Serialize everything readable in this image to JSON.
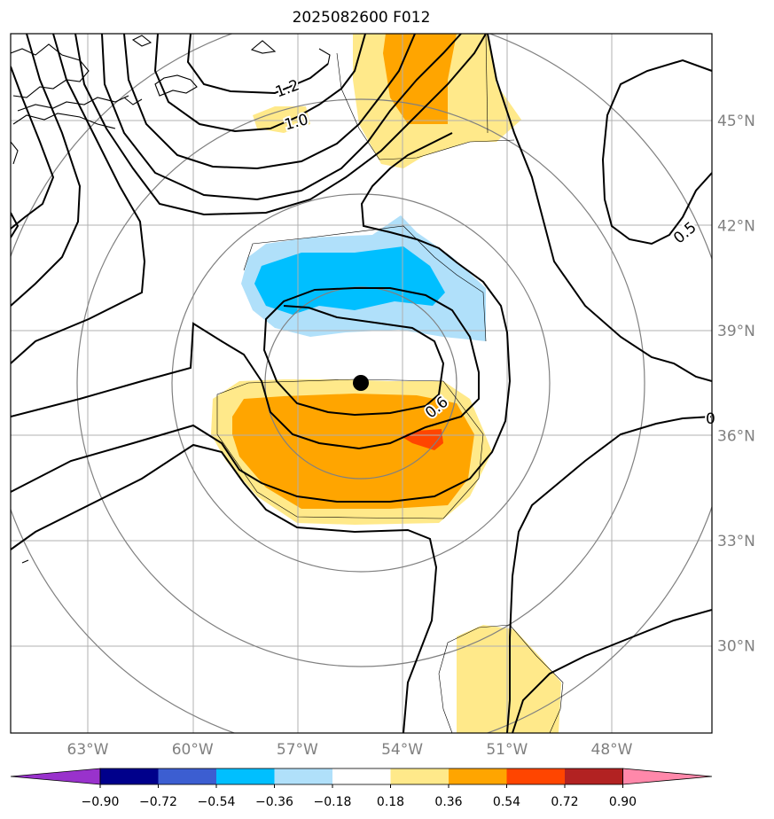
{
  "title": "2025082600 F012",
  "map": {
    "lat_labels": [
      {
        "lat": 45,
        "label": "45°N"
      },
      {
        "lat": 42,
        "label": "42°N"
      },
      {
        "lat": 39,
        "label": "39°N"
      },
      {
        "lat": 36,
        "label": "36°N"
      },
      {
        "lat": 33,
        "label": "33°N"
      },
      {
        "lat": 30,
        "label": "30°N"
      }
    ],
    "lon_labels": [
      {
        "lon": -63,
        "label": "63°W"
      },
      {
        "lon": -60,
        "label": "60°W"
      },
      {
        "lon": -57,
        "label": "57°W"
      },
      {
        "lon": -54,
        "label": "54°W"
      },
      {
        "lon": -51,
        "label": "51°W"
      },
      {
        "lon": -48,
        "label": "48°W"
      }
    ],
    "contour_labels": [
      {
        "text": "1.2"
      },
      {
        "text": "1.0"
      },
      {
        "text": "0.5"
      },
      {
        "text": "0.6"
      },
      {
        "text": "0"
      }
    ],
    "storm_center": {
      "lon": -55.0,
      "lat": 37.5
    },
    "colors": {
      "grid": "#b0b0b0",
      "tick_label": "#808080",
      "range_ring": "#808080",
      "contour": "#000000"
    }
  },
  "colorbar": {
    "ticks": [
      "−0.90",
      "−0.72",
      "−0.54",
      "−0.36",
      "−0.18",
      "0.18",
      "0.36",
      "0.54",
      "0.72",
      "0.90"
    ],
    "colors": [
      "#9932cc",
      "#00008b",
      "#3c5ed1",
      "#00bfff",
      "#b0e0fa",
      "#ffffff",
      "#ffe98a",
      "#ffa500",
      "#ff4500",
      "#b22222",
      "#ff88aa"
    ]
  }
}
